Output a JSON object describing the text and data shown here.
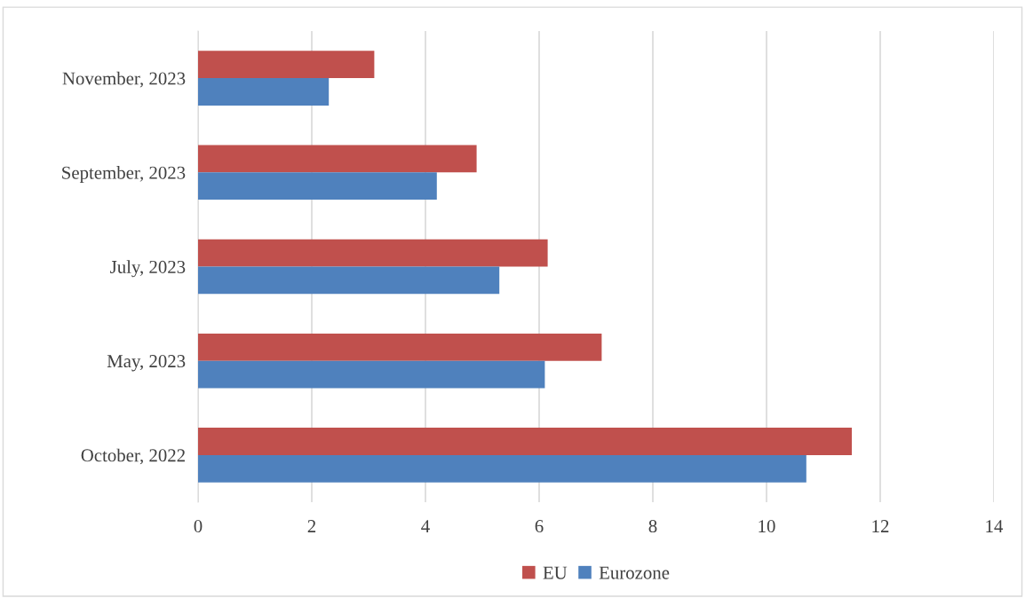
{
  "chart_data": {
    "type": "bar",
    "orientation": "horizontal",
    "categories": [
      "November, 2023",
      "September, 2023",
      "July, 2023",
      "May, 2023",
      "October, 2022"
    ],
    "series": [
      {
        "name": "EU",
        "color": "#c0504d",
        "values": [
          3.1,
          4.9,
          6.15,
          7.1,
          11.5
        ]
      },
      {
        "name": "Eurozone",
        "color": "#4f81bd",
        "values": [
          2.3,
          4.2,
          5.3,
          6.1,
          10.7
        ]
      }
    ],
    "xlim": [
      0,
      14
    ],
    "xticks": [
      0,
      2,
      4,
      6,
      8,
      10,
      12,
      14
    ],
    "grid": "x",
    "legend": "bottom"
  }
}
